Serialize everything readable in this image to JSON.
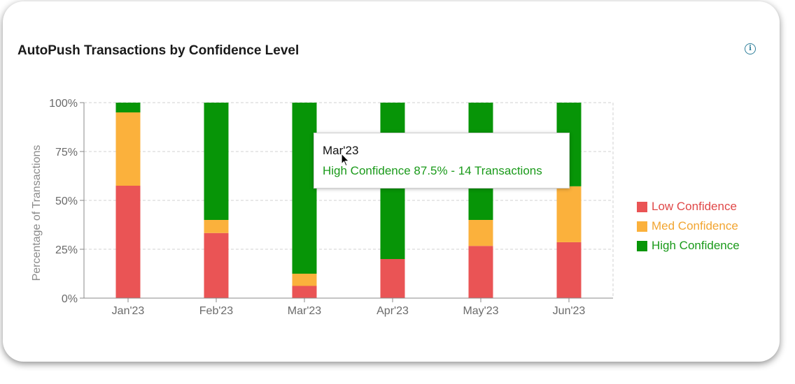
{
  "card": {
    "title": "AutoPush Transactions by Confidence Level",
    "info_icon": "info-icon",
    "info_glyph": "i"
  },
  "chart_data": {
    "type": "bar",
    "stacked": true,
    "categories": [
      "Jan'23",
      "Feb'23",
      "Mar'23",
      "Apr'23",
      "May'23",
      "Jun'23"
    ],
    "series": [
      {
        "name": "Low Confidence",
        "color": "#ea5455",
        "values": [
          57.5,
          33.3,
          6.25,
          20.0,
          26.7,
          28.6
        ]
      },
      {
        "name": "Med Confidence",
        "color": "#fbb13c",
        "values": [
          37.5,
          6.7,
          6.25,
          0,
          13.3,
          28.6
        ]
      },
      {
        "name": "High Confidence",
        "color": "#079507",
        "values": [
          5.0,
          60.0,
          87.5,
          80.0,
          60.0,
          42.8
        ]
      }
    ],
    "ylabel": "Percentage of Transactions",
    "yticks": [
      "0%",
      "25%",
      "50%",
      "75%",
      "100%"
    ],
    "ytick_values": [
      0,
      25,
      50,
      75,
      100
    ],
    "ylim": [
      0,
      100
    ],
    "grid": true,
    "legend_position": "right"
  },
  "tooltip": {
    "title": "Mar'23",
    "text": "High Confidence 87.5% - 14 Transactions",
    "color": "#1a9a1a"
  },
  "legend": {
    "items": [
      {
        "label": "Low Confidence",
        "color": "#ea5455",
        "text_color": "#e04848"
      },
      {
        "label": "Med Confidence",
        "color": "#fbb13c",
        "text_color": "#f2a531"
      },
      {
        "label": "High Confidence",
        "color": "#079507",
        "text_color": "#1a9a1a"
      }
    ]
  }
}
